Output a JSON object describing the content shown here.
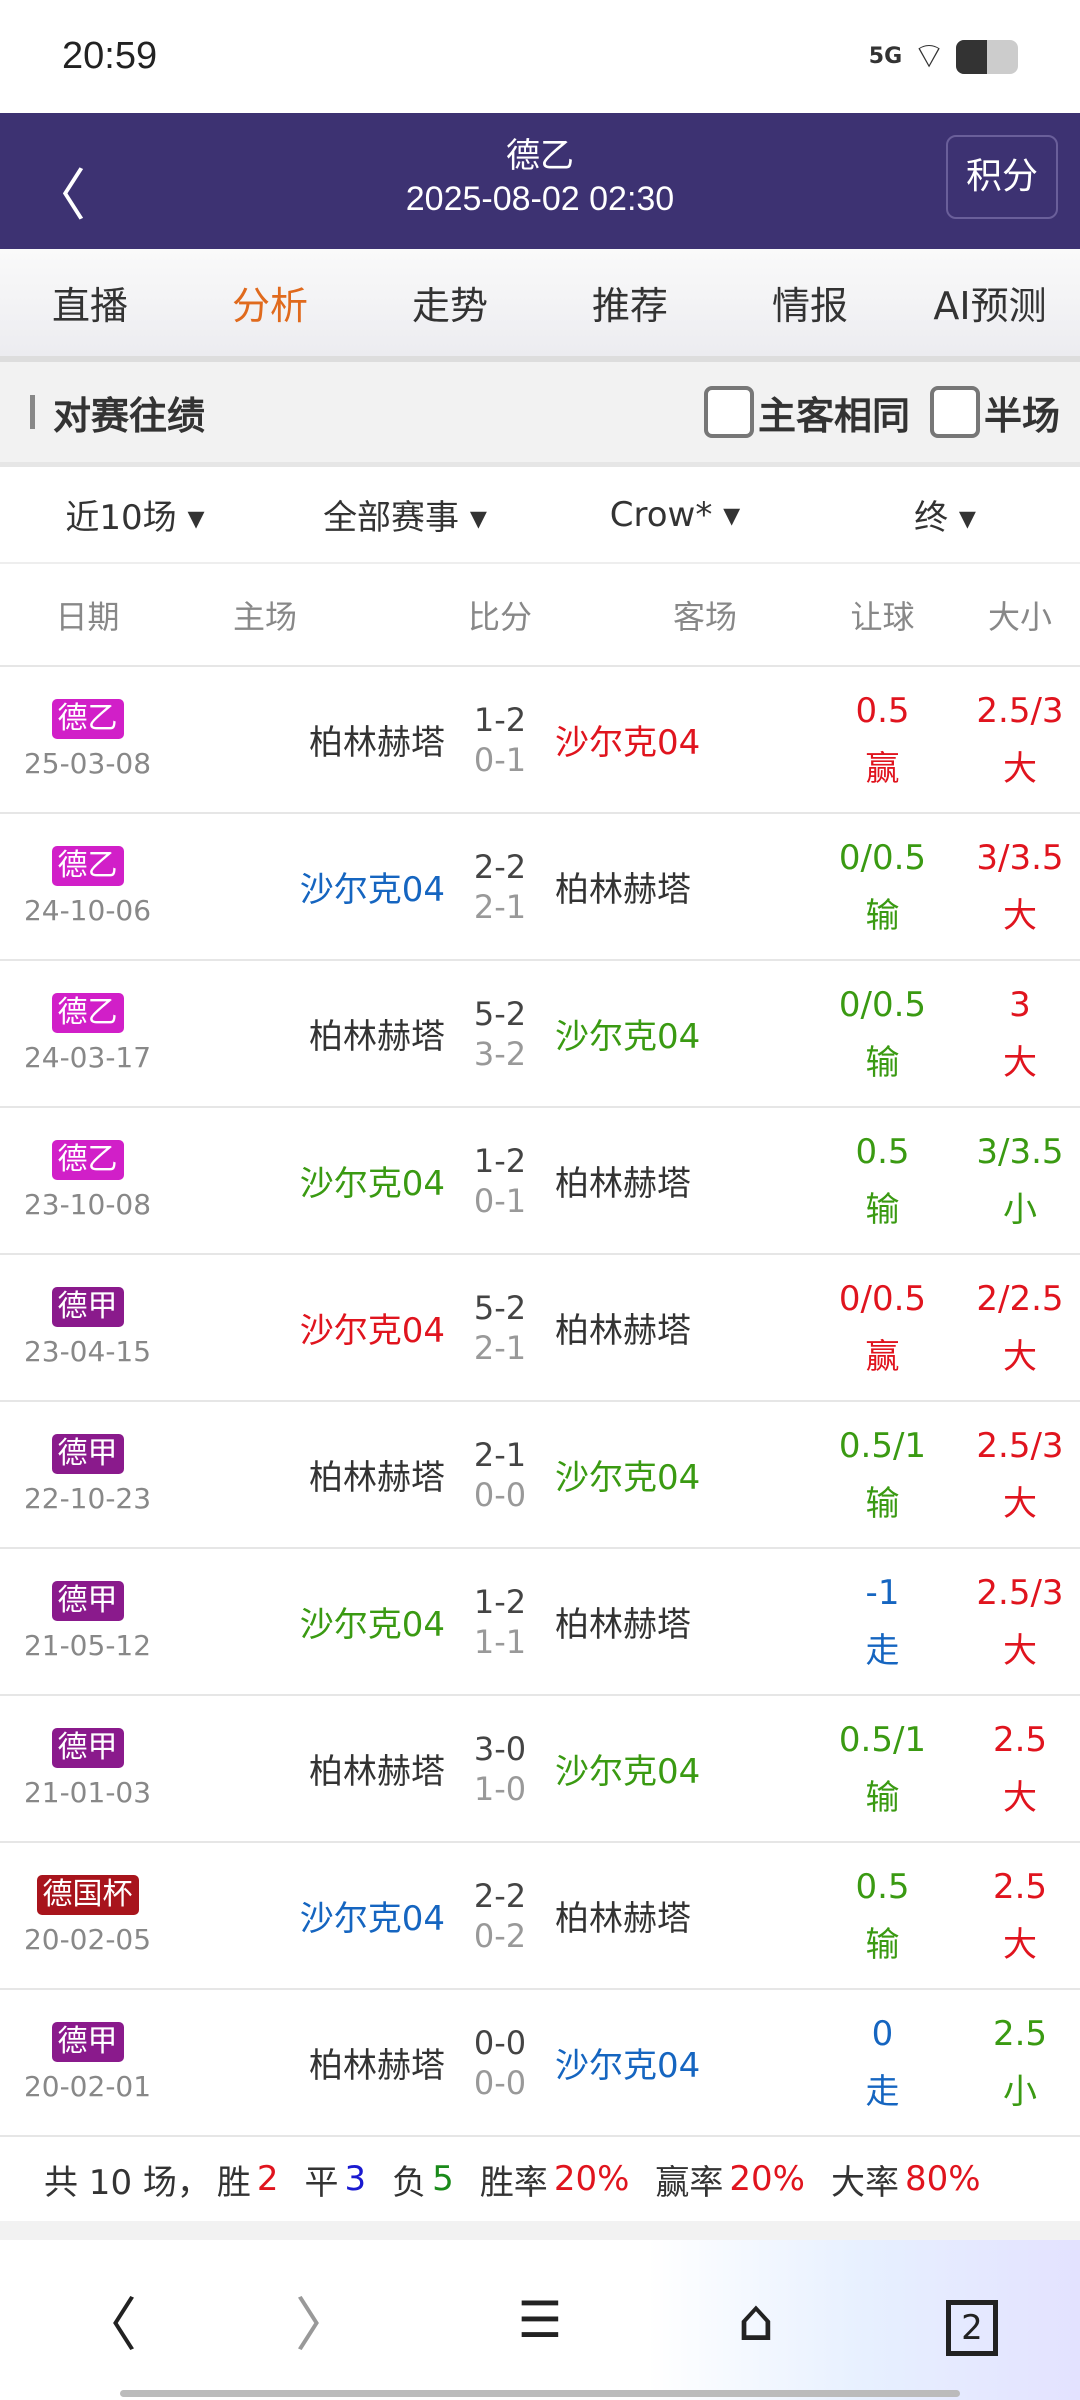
{
  "status": {
    "time": "20:59",
    "network": "5G"
  },
  "header": {
    "title": "德乙",
    "datetime": "2025-08-02 02:30",
    "standings_label": "积分"
  },
  "tabs": [
    {
      "label": "直播"
    },
    {
      "label": "分析",
      "active": true
    },
    {
      "label": "走势"
    },
    {
      "label": "推荐"
    },
    {
      "label": "情报"
    },
    {
      "label": "AI预测"
    }
  ],
  "section": {
    "title": "对赛往绩",
    "same_home_away": "主客相同",
    "half_time": "半场"
  },
  "filters": [
    "近10场 ▾",
    "全部赛事 ▾",
    "Crow* ▾",
    "终 ▾"
  ],
  "columns": {
    "date": "日期",
    "home": "主场",
    "score": "比分",
    "away": "客场",
    "handicap": "让球",
    "ou": "大小"
  },
  "colors": {
    "red": "#e0141e",
    "green": "#3a9a12",
    "blue": "#1565c0",
    "dark": "#333333",
    "header": "#3d3272",
    "active_tab": "#e06a1d"
  },
  "rows": [
    {
      "league": "德乙",
      "league_color": "#d11fc8",
      "date": "25-03-08",
      "home": "柏林赫塔",
      "home_color": "dark",
      "score": "1-2",
      "half": "0-1",
      "away": "沙尔克04",
      "away_color": "red",
      "hcp": "0.5",
      "hcp_res": "赢",
      "hcp_color": "red",
      "ou": "2.5/3",
      "ou_res": "大",
      "ou_color": "red"
    },
    {
      "league": "德乙",
      "league_color": "#d11fc8",
      "date": "24-10-06",
      "home": "沙尔克04",
      "home_color": "blue",
      "score": "2-2",
      "half": "2-1",
      "away": "柏林赫塔",
      "away_color": "dark",
      "hcp": "0/0.5",
      "hcp_res": "输",
      "hcp_color": "green",
      "ou": "3/3.5",
      "ou_res": "大",
      "ou_color": "red"
    },
    {
      "league": "德乙",
      "league_color": "#d11fc8",
      "date": "24-03-17",
      "home": "柏林赫塔",
      "home_color": "dark",
      "score": "5-2",
      "half": "3-2",
      "away": "沙尔克04",
      "away_color": "green",
      "hcp": "0/0.5",
      "hcp_res": "输",
      "hcp_color": "green",
      "ou": "3",
      "ou_res": "大",
      "ou_color": "red"
    },
    {
      "league": "德乙",
      "league_color": "#d11fc8",
      "date": "23-10-08",
      "home": "沙尔克04",
      "home_color": "green",
      "score": "1-2",
      "half": "0-1",
      "away": "柏林赫塔",
      "away_color": "dark",
      "hcp": "0.5",
      "hcp_res": "输",
      "hcp_color": "green",
      "ou": "3/3.5",
      "ou_res": "小",
      "ou_color": "green"
    },
    {
      "league": "德甲",
      "league_color": "#8a1a8c",
      "date": "23-04-15",
      "home": "沙尔克04",
      "home_color": "red",
      "score": "5-2",
      "half": "2-1",
      "away": "柏林赫塔",
      "away_color": "dark",
      "hcp": "0/0.5",
      "hcp_res": "赢",
      "hcp_color": "red",
      "ou": "2/2.5",
      "ou_res": "大",
      "ou_color": "red"
    },
    {
      "league": "德甲",
      "league_color": "#8a1a8c",
      "date": "22-10-23",
      "home": "柏林赫塔",
      "home_color": "dark",
      "score": "2-1",
      "half": "0-0",
      "away": "沙尔克04",
      "away_color": "green",
      "hcp": "0.5/1",
      "hcp_res": "输",
      "hcp_color": "green",
      "ou": "2.5/3",
      "ou_res": "大",
      "ou_color": "red"
    },
    {
      "league": "德甲",
      "league_color": "#8a1a8c",
      "date": "21-05-12",
      "home": "沙尔克04",
      "home_color": "green",
      "score": "1-2",
      "half": "1-1",
      "away": "柏林赫塔",
      "away_color": "dark",
      "hcp": "-1",
      "hcp_res": "走",
      "hcp_color": "blue",
      "ou": "2.5/3",
      "ou_res": "大",
      "ou_color": "red"
    },
    {
      "league": "德甲",
      "league_color": "#8a1a8c",
      "date": "21-01-03",
      "home": "柏林赫塔",
      "home_color": "dark",
      "score": "3-0",
      "half": "1-0",
      "away": "沙尔克04",
      "away_color": "green",
      "hcp": "0.5/1",
      "hcp_res": "输",
      "hcp_color": "green",
      "ou": "2.5",
      "ou_res": "大",
      "ou_color": "red"
    },
    {
      "league": "德国杯",
      "league_color": "#a8141c",
      "date": "20-02-05",
      "home": "沙尔克04",
      "home_color": "blue",
      "score": "2-2",
      "half": "0-2",
      "away": "柏林赫塔",
      "away_color": "dark",
      "hcp": "0.5",
      "hcp_res": "输",
      "hcp_color": "green",
      "ou": "2.5",
      "ou_res": "大",
      "ou_color": "red"
    },
    {
      "league": "德甲",
      "league_color": "#8a1a8c",
      "date": "20-02-01",
      "home": "柏林赫塔",
      "home_color": "dark",
      "score": "0-0",
      "half": "0-0",
      "away": "沙尔克04",
      "away_color": "blue",
      "hcp": "0",
      "hcp_res": "走",
      "hcp_color": "blue",
      "ou": "2.5",
      "ou_res": "小",
      "ou_color": "green"
    }
  ],
  "summary": {
    "total": "共 10 场，",
    "win_label": "胜",
    "win": "2",
    "draw_label": "平",
    "draw": "3",
    "loss_label": "负",
    "loss": "5",
    "winrate_label": "胜率",
    "winrate": "20%",
    "hcprate_label": "赢率",
    "hcprate": "20%",
    "overrate_label": "大率",
    "overrate": "80%"
  },
  "bottom_nav": {
    "tab_count": "2"
  }
}
